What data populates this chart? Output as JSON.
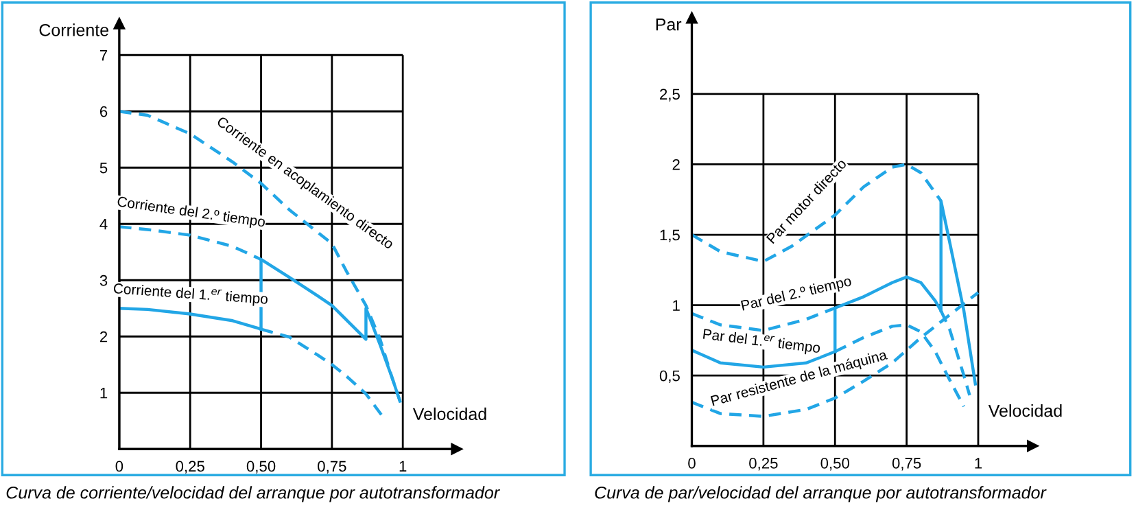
{
  "chart_data": [
    {
      "type": "line",
      "xlabel": "Velocidad",
      "ylabel": "Corriente",
      "xlim": [
        0,
        1.19
      ],
      "ylim": [
        0,
        7.56
      ],
      "xticks": [
        {
          "value": 0,
          "label": "0"
        },
        {
          "value": 0.25,
          "label": "0,25"
        },
        {
          "value": 0.5,
          "label": "0,50"
        },
        {
          "value": 0.75,
          "label": "0,75"
        },
        1
      ],
      "yticks": [
        1,
        2,
        3,
        4,
        5,
        6,
        7
      ],
      "grid": true,
      "series": [
        {
          "color": "#22a6e6",
          "line_style": "dashed",
          "x": [
            0,
            0.1,
            0.25,
            0.4,
            0.5,
            0.6,
            0.7,
            0.75,
            0.8,
            0.87,
            0.92,
            0.96,
            0.99
          ],
          "values": [
            6.0,
            5.93,
            5.6,
            5.1,
            4.72,
            4.25,
            3.85,
            3.65,
            3.17,
            2.55,
            1.95,
            1.3,
            0.85
          ]
        },
        {
          "color": "#22a6e6",
          "line_style": "dashed",
          "x": [
            0,
            0.1,
            0.25,
            0.4,
            0.5
          ],
          "values": [
            3.95,
            3.9,
            3.8,
            3.6,
            3.37
          ]
        },
        {
          "color": "#22a6e6",
          "line_style": "solid",
          "x": [
            0.5,
            0.5,
            0.6,
            0.7,
            0.75,
            0.8,
            0.87,
            0.87,
            0.92,
            0.96,
            0.99
          ],
          "values": [
            2.13,
            3.37,
            3.05,
            2.72,
            2.55,
            2.3,
            1.95,
            2.5,
            1.85,
            1.3,
            0.85
          ]
        },
        {
          "color": "#22a6e6",
          "line_style": "solid",
          "x": [
            0,
            0.1,
            0.25,
            0.4,
            0.5
          ],
          "values": [
            2.5,
            2.48,
            2.4,
            2.28,
            2.13
          ]
        },
        {
          "color": "#22a6e6",
          "line_style": "dashed",
          "x": [
            0.5,
            0.6,
            0.7,
            0.75,
            0.8,
            0.87,
            0.93
          ],
          "values": [
            2.13,
            1.99,
            1.67,
            1.5,
            1.3,
            0.98,
            0.57
          ]
        }
      ],
      "annotations": [
        "Corriente en acoplamiento directo",
        "Corriente del 2.º tiempo",
        "Corriente del 1.$^{er}$ tiempo",
        "Curva de corriente/velocidad del arranque por autotransformador"
      ]
    },
    {
      "type": "line",
      "xlabel": "Velocidad",
      "ylabel": "Par",
      "xlim": [
        0,
        1.19
      ],
      "ylim": [
        0,
        3.04
      ],
      "xticks": [
        {
          "value": 0,
          "label": "0"
        },
        {
          "value": 0.25,
          "label": "0,25"
        },
        {
          "value": 0.5,
          "label": "0,50"
        },
        {
          "value": 0.75,
          "label": "0,75"
        },
        1
      ],
      "yticks": [
        {
          "value": 0.5,
          "label": "0,5"
        },
        1,
        {
          "value": 1.5,
          "label": "1,5"
        },
        2,
        {
          "value": 2.5,
          "label": "2,5"
        }
      ],
      "grid": true,
      "series": [
        {
          "color": "#22a6e6",
          "line_style": "dashed",
          "x": [
            0,
            0.1,
            0.25,
            0.35,
            0.5,
            0.6,
            0.7,
            0.75,
            0.8,
            0.87
          ],
          "values": [
            1.5,
            1.38,
            1.31,
            1.42,
            1.64,
            1.84,
            1.98,
            2.0,
            1.94,
            1.74
          ]
        },
        {
          "color": "#22a6e6",
          "line_style": "solid",
          "x": [
            0.87,
            0.87,
            0.9,
            0.95,
            0.99
          ],
          "values": [
            0.96,
            1.74,
            1.45,
            0.96,
            0.44
          ]
        },
        {
          "color": "#22a6e6",
          "line_style": "dashed",
          "x": [
            0,
            0.1,
            0.25,
            0.4,
            0.5
          ],
          "values": [
            0.94,
            0.86,
            0.82,
            0.9,
            0.98
          ]
        },
        {
          "color": "#22a6e6",
          "line_style": "solid",
          "x": [
            0.5,
            0.5,
            0.6,
            0.7,
            0.75,
            0.8,
            0.85,
            0.87
          ],
          "values": [
            0.67,
            0.98,
            1.06,
            1.16,
            1.2,
            1.16,
            1.03,
            0.96
          ]
        },
        {
          "color": "#22a6e6",
          "line_style": "dashed",
          "x": [
            0.87,
            0.9,
            0.95,
            0.97
          ],
          "values": [
            0.96,
            0.83,
            0.5,
            0.36
          ]
        },
        {
          "color": "#22a6e6",
          "line_style": "solid",
          "x": [
            0,
            0.1,
            0.25,
            0.4,
            0.5
          ],
          "values": [
            0.68,
            0.59,
            0.56,
            0.59,
            0.67
          ]
        },
        {
          "color": "#22a6e6",
          "line_style": "dashed",
          "x": [
            0.5,
            0.6,
            0.7,
            0.75,
            0.8,
            0.85,
            0.9,
            0.95
          ],
          "values": [
            0.67,
            0.77,
            0.85,
            0.86,
            0.81,
            0.67,
            0.47,
            0.28
          ]
        },
        {
          "color": "#22a6e6",
          "line_style": "dashed",
          "x": [
            0,
            0.1,
            0.25,
            0.4,
            0.5,
            0.6,
            0.7,
            0.8,
            0.9,
            1.0
          ],
          "values": [
            0.31,
            0.23,
            0.21,
            0.26,
            0.34,
            0.46,
            0.59,
            0.77,
            0.93,
            1.09
          ]
        }
      ],
      "annotations": [
        "Par motor directo",
        "Par del 2.º tiempo",
        "Par del 1.$^{er}$ tiempo",
        "Par resistente de la máquina",
        "Curva de par/velocidad del arranque por autotransformador"
      ]
    }
  ]
}
